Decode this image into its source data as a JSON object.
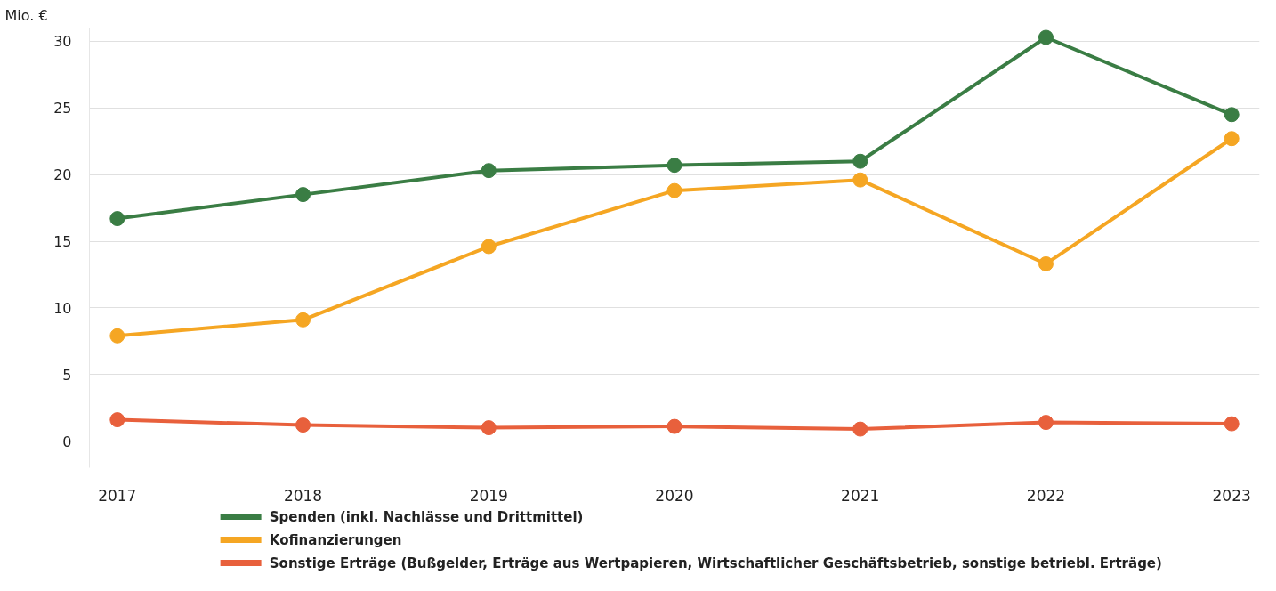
{
  "chart_data": {
    "type": "line",
    "ylabel": "Mio. €",
    "categories": [
      "2017",
      "2018",
      "2019",
      "2020",
      "2021",
      "2022",
      "2023"
    ],
    "series": [
      {
        "name": "Spenden (inkl. Nachlässe und Drittmittel)",
        "color": "#3a7d44",
        "values": [
          16.7,
          18.5,
          20.3,
          20.7,
          21.0,
          30.3,
          24.5
        ]
      },
      {
        "name": "Kofinanzierungen",
        "color": "#f5a623",
        "values": [
          7.9,
          9.1,
          14.6,
          18.8,
          19.6,
          13.3,
          22.7
        ]
      },
      {
        "name": "Sonstige Erträge (Bußgelder, Erträge aus Wertpapieren, Wirtschaftlicher Geschäftsbetrieb, sonstige betriebl. Erträge)",
        "color": "#e8603c",
        "values": [
          1.6,
          1.2,
          1.0,
          1.1,
          0.9,
          1.4,
          1.3
        ]
      }
    ],
    "ylim": [
      -2,
      31
    ],
    "yticks": [
      0,
      5,
      10,
      15,
      20,
      25,
      30
    ],
    "grid": "y",
    "legend": "bottom",
    "marker": "circle",
    "line_style": "solid"
  }
}
